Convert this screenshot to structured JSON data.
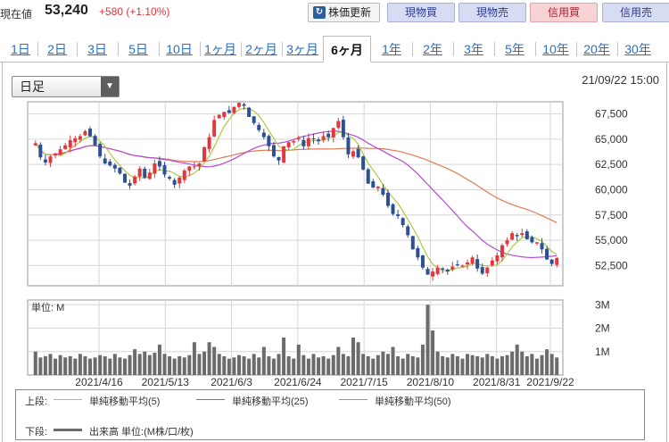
{
  "header": {
    "price_label": "現在値",
    "price_value": "53,240",
    "price_change": "+580 (+1.10%)",
    "buttons": {
      "update": "株価更新",
      "spot_buy": "現物買",
      "spot_sell": "現物売",
      "margin_buy": "信用買",
      "margin_sell": "信用売"
    }
  },
  "tabs": [
    "1日",
    "2日",
    "3日",
    "5日",
    "10日",
    "1ヶ月",
    "2ヶ月",
    "3ヶ月",
    "6ヶ月",
    "1年",
    "2年",
    "3年",
    "5年",
    "10年",
    "20年",
    "30年"
  ],
  "active_tab": "6ヶ月",
  "chart": {
    "interval_select": "日足",
    "datetime": "21/09/22 15:00",
    "volume_unit_label": "単位: M",
    "legend": {
      "upper_label": "上段:",
      "lower_label": "下段:",
      "ma5": "単純移動平均(5)",
      "ma25": "単純移動平均(25)",
      "ma50": "単純移動平均(50)",
      "volume": "出来高 単位:(M株/口/枚)"
    },
    "colors": {
      "up": "#e2383d",
      "down": "#2d4f93",
      "ma5": "#a9c93e",
      "ma25": "#b44ad4",
      "ma50": "#e07a55",
      "volume": "#6b6b6b",
      "grid": "#d6d6d6"
    }
  },
  "chart_data": {
    "type": "candlestick",
    "x_tick_labels": [
      "2021/4/16",
      "2021/5/13",
      "2021/6/3",
      "2021/6/24",
      "2021/7/15",
      "2021/8/10",
      "2021/8/31",
      "2021/9/22"
    ],
    "y_tick_labels": [
      "67,500",
      "65,000",
      "62,500",
      "60,000",
      "57,500",
      "55,000",
      "52,500"
    ],
    "ylim": [
      50500,
      68700
    ],
    "volume_tick_labels": [
      "3M",
      "2M",
      "1M"
    ],
    "volume_ylim": [
      0,
      3.2
    ],
    "close": [
      64600,
      63200,
      62700,
      63300,
      63600,
      64000,
      64400,
      64900,
      65100,
      65300,
      65800,
      65300,
      64400,
      63300,
      62600,
      62400,
      62100,
      61600,
      60700,
      60400,
      61300,
      62100,
      61200,
      61700,
      62600,
      62300,
      61500,
      61100,
      60500,
      61200,
      61900,
      62300,
      62300,
      62600,
      64200,
      65200,
      66900,
      67400,
      67700,
      67600,
      68200,
      68600,
      68300,
      67200,
      66600,
      65900,
      65200,
      64300,
      63300,
      62900,
      64300,
      64700,
      64800,
      65100,
      64300,
      65100,
      65000,
      64800,
      65300,
      65200,
      66100,
      66800,
      65200,
      63500,
      63800,
      63200,
      62000,
      60600,
      60200,
      60300,
      59500,
      58400,
      57600,
      57400,
      56500,
      55500,
      54100,
      53300,
      52300,
      51600,
      51900,
      52300,
      52100,
      51900,
      52400,
      52600,
      52500,
      52800,
      53300,
      52200,
      51700,
      52300,
      53000,
      53500,
      54500,
      55000,
      55700,
      55400,
      55700,
      55100,
      54800,
      54800,
      54100,
      53100,
      52660,
      53240
    ],
    "volume_M": [
      1.0,
      0.75,
      0.8,
      0.9,
      0.7,
      0.85,
      0.75,
      0.8,
      0.7,
      0.9,
      0.8,
      0.7,
      0.75,
      0.85,
      0.8,
      0.7,
      0.9,
      0.75,
      0.7,
      0.85,
      1.1,
      0.9,
      1.0,
      0.85,
      0.95,
      1.3,
      0.9,
      0.8,
      0.7,
      0.8,
      0.75,
      0.85,
      1.4,
      0.9,
      1.0,
      1.4,
      1.2,
      0.9,
      0.8,
      0.7,
      0.75,
      0.85,
      0.8,
      0.7,
      0.9,
      0.75,
      1.2,
      0.8,
      0.7,
      0.9,
      1.6,
      0.8,
      0.7,
      1.3,
      0.85,
      0.7,
      0.9,
      0.75,
      0.8,
      0.7,
      0.85,
      1.2,
      0.9,
      0.8,
      1.6,
      1.4,
      0.9,
      0.8,
      0.7,
      0.85,
      1.0,
      0.9,
      1.2,
      0.8,
      0.7,
      0.9,
      0.8,
      0.75,
      1.3,
      3.0,
      1.9,
      1.0,
      0.8,
      0.75,
      0.9,
      0.8,
      0.7,
      0.9,
      0.85,
      0.8,
      0.75,
      0.9,
      0.8,
      0.7,
      0.8,
      0.85,
      1.0,
      1.3,
      1.0,
      0.8,
      0.9,
      0.7,
      0.85,
      1.1,
      0.9,
      0.75
    ]
  }
}
